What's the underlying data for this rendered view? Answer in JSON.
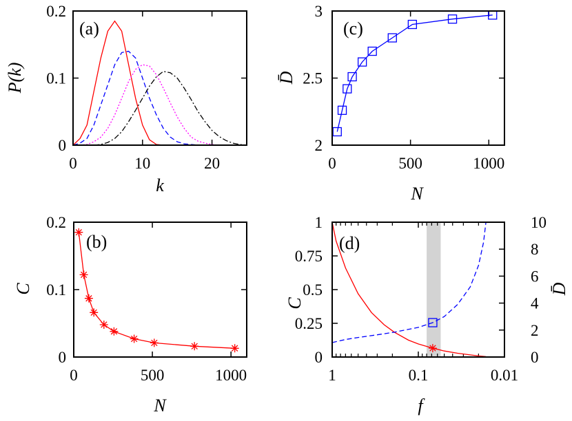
{
  "chart_data": [
    {
      "panel": "(a)",
      "type": "line",
      "xlabel": "k",
      "ylabel": "P(k)",
      "xlim": [
        0,
        25
      ],
      "ylim": [
        0,
        0.2
      ],
      "xticks": [
        "0",
        "10",
        "20"
      ],
      "yticks": [
        "0",
        "0.1",
        "0.2"
      ],
      "grid": false,
      "series": [
        {
          "color": "#ff0000",
          "style": "solid",
          "x": [
            0,
            1,
            2,
            3,
            4,
            5,
            6,
            7,
            8,
            9,
            10,
            11,
            12,
            13
          ],
          "y": [
            0,
            0.01,
            0.03,
            0.08,
            0.13,
            0.17,
            0.185,
            0.17,
            0.12,
            0.07,
            0.03,
            0.008,
            0.001,
            0
          ]
        },
        {
          "color": "#0000ff",
          "style": "dashed",
          "x": [
            0,
            1,
            2,
            3,
            4,
            5,
            6,
            7,
            8,
            9,
            10,
            11,
            12,
            13,
            14,
            15,
            16,
            17,
            18
          ],
          "y": [
            0,
            0.003,
            0.01,
            0.03,
            0.06,
            0.09,
            0.12,
            0.138,
            0.14,
            0.13,
            0.1,
            0.07,
            0.045,
            0.025,
            0.012,
            0.005,
            0.002,
            0.001,
            0
          ]
        },
        {
          "color": "#ff00ff",
          "style": "dotted",
          "x": [
            1,
            2,
            3,
            4,
            5,
            6,
            7,
            8,
            9,
            10,
            11,
            12,
            13,
            14,
            15,
            16,
            17,
            18,
            19,
            20,
            21
          ],
          "y": [
            0,
            0.001,
            0.005,
            0.012,
            0.025,
            0.045,
            0.07,
            0.095,
            0.113,
            0.12,
            0.118,
            0.105,
            0.085,
            0.063,
            0.042,
            0.025,
            0.012,
            0.006,
            0.003,
            0.001,
            0
          ]
        },
        {
          "color": "#000000",
          "style": "dashdot",
          "x": [
            3,
            4,
            5,
            6,
            7,
            8,
            9,
            10,
            11,
            12,
            13,
            14,
            15,
            16,
            17,
            18,
            19,
            20,
            21,
            22,
            23,
            24,
            25
          ],
          "y": [
            0,
            0.001,
            0.004,
            0.01,
            0.02,
            0.035,
            0.052,
            0.07,
            0.088,
            0.102,
            0.11,
            0.108,
            0.1,
            0.085,
            0.068,
            0.05,
            0.035,
            0.022,
            0.013,
            0.007,
            0.003,
            0.001,
            0
          ]
        }
      ]
    },
    {
      "panel": "(c)",
      "type": "line",
      "xlabel": "N",
      "ylabel": "D̄",
      "xlim": [
        0,
        1100
      ],
      "ylim": [
        2,
        3
      ],
      "xticks": [
        "0",
        "500",
        "1000"
      ],
      "yticks": [
        "2",
        "2.5",
        "3"
      ],
      "grid": false,
      "series": [
        {
          "color": "#0000ff",
          "style": "solid",
          "marker": "square",
          "x": [
            32,
            64,
            96,
            128,
            192,
            256,
            384,
            512,
            768,
            1024
          ],
          "y": [
            2.1,
            2.26,
            2.42,
            2.51,
            2.62,
            2.7,
            2.8,
            2.9,
            2.94,
            2.97
          ]
        }
      ]
    },
    {
      "panel": "(b)",
      "type": "line",
      "xlabel": "N",
      "ylabel": "C",
      "xlim": [
        0,
        1100
      ],
      "ylim": [
        0,
        0.2
      ],
      "xticks": [
        "0",
        "500",
        "1000"
      ],
      "yticks": [
        "0",
        "0.1",
        "0.2"
      ],
      "grid": false,
      "series": [
        {
          "color": "#ff0000",
          "style": "solid",
          "marker": "star",
          "x": [
            32,
            64,
            96,
            128,
            192,
            256,
            384,
            512,
            768,
            1024
          ],
          "y": [
            0.185,
            0.122,
            0.087,
            0.066,
            0.048,
            0.038,
            0.027,
            0.021,
            0.016,
            0.013
          ]
        }
      ]
    },
    {
      "panel": "(d)",
      "type": "line",
      "xlabel": "f",
      "ylabel": "C",
      "y2label": "D̄",
      "xscale": "log",
      "xlim": [
        1,
        0.01
      ],
      "ylim": [
        0,
        1
      ],
      "y2lim": [
        0,
        10
      ],
      "xticks": [
        "1",
        "0.1",
        "0.01"
      ],
      "yticks": [
        "0",
        "0.25",
        "0.5",
        "0.75",
        "1"
      ],
      "y2ticks": [
        "0",
        "2",
        "4",
        "6",
        "8",
        "10"
      ],
      "grid": false,
      "shaded_band": {
        "x": [
          0.08,
          0.055
        ],
        "color": "#d3d3d3"
      },
      "series": [
        {
          "color": "#ff0000",
          "style": "solid",
          "axis": "left",
          "x": [
            1,
            0.9,
            0.7,
            0.5,
            0.35,
            0.25,
            0.19,
            0.13,
            0.1,
            0.068,
            0.05,
            0.035,
            0.025,
            0.02,
            0.0164
          ],
          "y": [
            1,
            0.86,
            0.66,
            0.47,
            0.33,
            0.24,
            0.184,
            0.125,
            0.097,
            0.066,
            0.045,
            0.028,
            0.016,
            0.008,
            0.003
          ]
        },
        {
          "color": "#0000ff",
          "style": "dashed",
          "axis": "right",
          "x": [
            1,
            0.7,
            0.5,
            0.3,
            0.19,
            0.1,
            0.068,
            0.05,
            0.035,
            0.025,
            0.02,
            0.0175,
            0.0164
          ],
          "y": [
            1.07,
            1.3,
            1.45,
            1.65,
            1.84,
            2.2,
            2.55,
            3.0,
            3.9,
            5.2,
            6.8,
            8.5,
            10
          ]
        }
      ],
      "markers": [
        {
          "shape": "square",
          "color": "#0000ff",
          "axis": "right",
          "x": 0.068,
          "y": 2.55
        },
        {
          "shape": "star",
          "color": "#ff0000",
          "axis": "left",
          "x": 0.068,
          "y": 0.066
        }
      ]
    }
  ]
}
